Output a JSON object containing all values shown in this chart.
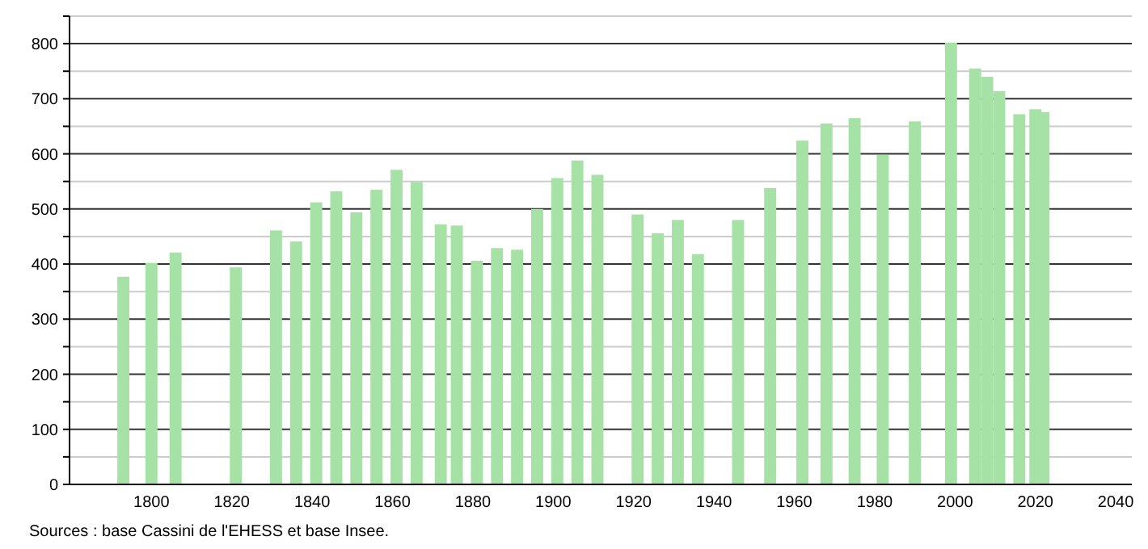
{
  "chart_data": {
    "type": "bar",
    "color": "#a6e2a6",
    "x": [
      1793,
      1800,
      1806,
      1821,
      1831,
      1836,
      1841,
      1846,
      1851,
      1856,
      1861,
      1866,
      1872,
      1876,
      1881,
      1886,
      1891,
      1896,
      1901,
      1906,
      1911,
      1921,
      1926,
      1931,
      1936,
      1946,
      1954,
      1962,
      1968,
      1975,
      1982,
      1990,
      1999,
      2005,
      2008,
      2011,
      2016,
      2020,
      2022
    ],
    "values": [
      377,
      402,
      421,
      394,
      461,
      441,
      512,
      532,
      494,
      535,
      571,
      549,
      472,
      470,
      406,
      429,
      426,
      500,
      556,
      588,
      562,
      490,
      456,
      480,
      418,
      480,
      538,
      624,
      655,
      665,
      598,
      659,
      802,
      755,
      740,
      714,
      672,
      681,
      676
    ],
    "xlim": [
      1778,
      2044
    ],
    "xticks": [
      1800,
      1820,
      1840,
      1860,
      1880,
      1900,
      1920,
      1940,
      1960,
      1980,
      2000,
      2020,
      2040
    ],
    "ylim": [
      0,
      850
    ],
    "yticks": [
      0,
      {
        "value": 50,
        "label": null
      },
      100,
      {
        "value": 150,
        "label": null
      },
      200,
      {
        "value": 250,
        "label": null
      },
      300,
      {
        "value": 350,
        "label": null
      },
      400,
      {
        "value": 450,
        "label": null
      },
      500,
      {
        "value": 550,
        "label": null
      },
      600,
      {
        "value": 650,
        "label": null
      },
      700,
      {
        "value": 750,
        "label": null
      },
      800,
      {
        "value": 850,
        "label": null
      }
    ],
    "grid": true,
    "annotations": [
      "Sources : base Cassini de l'EHESS et base Insee."
    ]
  }
}
